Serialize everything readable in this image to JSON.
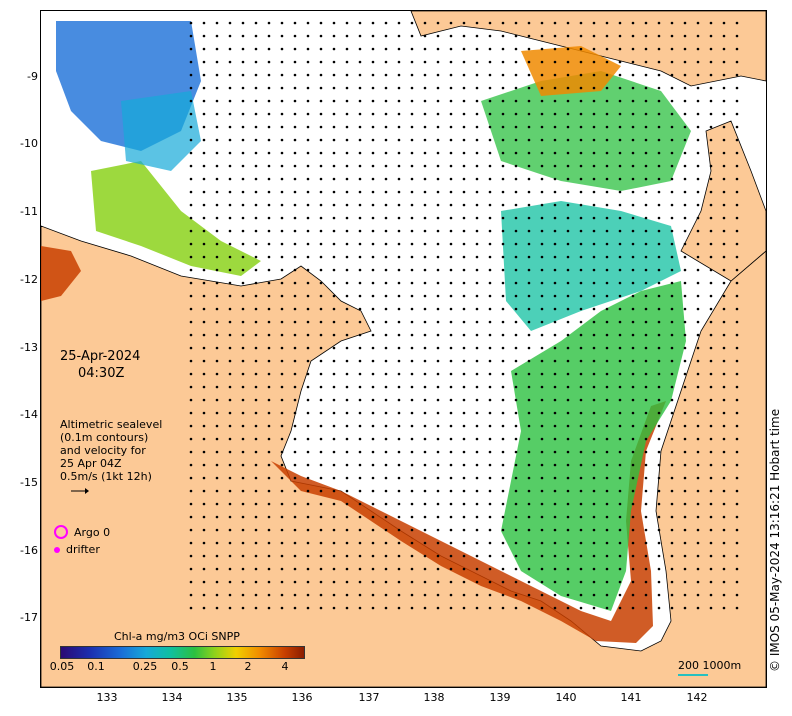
{
  "map": {
    "date": "25-Apr-2024",
    "time": "04:30Z",
    "info_lines": [
      "Altimetric sealevel",
      "(0.1m contours)",
      "and velocity for",
      "25 Apr 04Z",
      "0.5m/s (1kt 12h)"
    ],
    "legend": {
      "argo": "Argo 0",
      "drifter": "drifter"
    },
    "colorbar": {
      "title": "Chl-a mg/m3 OCi SNPP",
      "ticks": [
        "0.05",
        "0.1",
        "0.25",
        "0.5",
        "1",
        "2",
        "4"
      ]
    },
    "scale": "200  1000m",
    "credit": "© IMOS 05-May-2024 13:16:21 Hobart time",
    "lat_ticks": [
      "-9",
      "-10",
      "-11",
      "-12",
      "-13",
      "-14",
      "-15",
      "-16",
      "-17"
    ],
    "lon_ticks": [
      "133",
      "134",
      "135",
      "136",
      "137",
      "138",
      "139",
      "140",
      "141",
      "142"
    ],
    "colors": {
      "land": "#fcc996",
      "water": "#ffffff",
      "chl_low": "#1a6fd8",
      "chl_mid": "#2cc040",
      "chl_high": "#c84000",
      "argo_marker": "#ff00ff"
    }
  }
}
